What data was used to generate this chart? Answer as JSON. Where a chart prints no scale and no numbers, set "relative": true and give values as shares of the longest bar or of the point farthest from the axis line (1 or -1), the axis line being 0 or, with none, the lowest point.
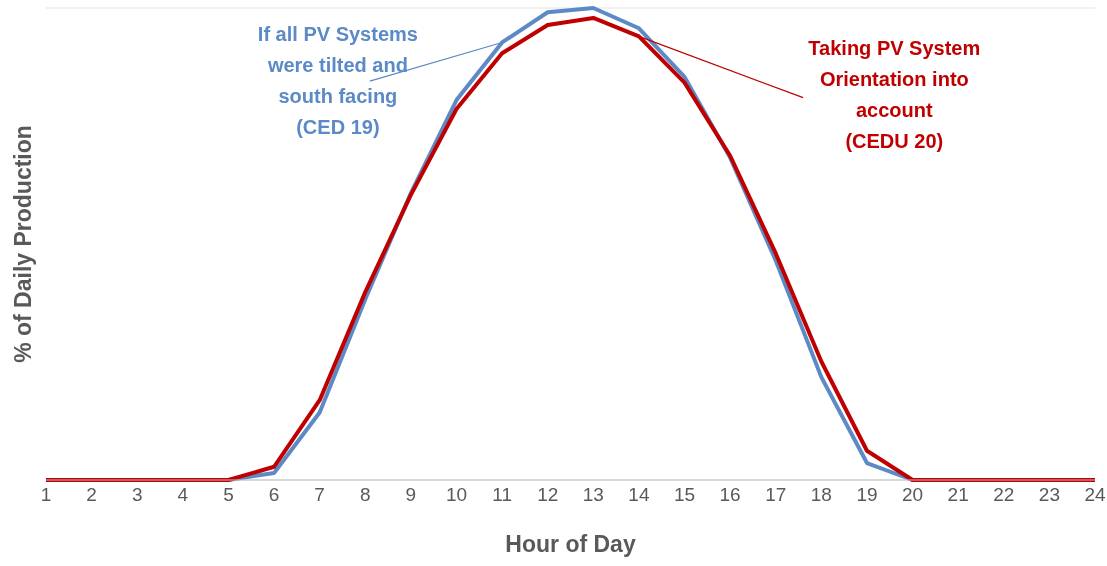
{
  "chart_data": {
    "type": "line",
    "relative": true,
    "xlabel": "Hour of Day",
    "ylabel": "% of Daily Production",
    "x": [
      1,
      2,
      3,
      4,
      5,
      6,
      7,
      8,
      9,
      10,
      11,
      12,
      13,
      14,
      15,
      16,
      17,
      18,
      19,
      20,
      21,
      22,
      23,
      24
    ],
    "xlim": [
      1,
      24
    ],
    "xticks": [
      1,
      2,
      3,
      4,
      5,
      6,
      7,
      8,
      9,
      10,
      11,
      12,
      13,
      14,
      15,
      16,
      17,
      18,
      19,
      20,
      21,
      22,
      23,
      24
    ],
    "series": [
      {
        "color": "#5b8ac6",
        "values": [
          null,
          null,
          null,
          null,
          0,
          0.015,
          0.143,
          0.383,
          0.608,
          0.805,
          0.927,
          0.991,
          1,
          0.957,
          0.854,
          0.683,
          0.465,
          0.218,
          0.036,
          0,
          null,
          null,
          null,
          null
        ]
      },
      {
        "color": "#c00000",
        "values": [
          0,
          0,
          0,
          0,
          0,
          0.028,
          0.169,
          0.398,
          0.604,
          0.786,
          0.904,
          0.964,
          0.979,
          0.94,
          0.842,
          0.687,
          0.48,
          0.251,
          0.062,
          0,
          0,
          0,
          0,
          0
        ]
      }
    ],
    "annotations": [
      {
        "text": "If all PV Systems\nwere tilted and\nsouth facing\n(CED 19)",
        "x": 11,
        "y": 0.927
      },
      {
        "text": "Taking PV System\nOrientation into\naccount\n(CEDU 20)",
        "x": 14,
        "y": 0.94
      }
    ],
    "grid": "y",
    "marker": "none",
    "line_style": "solid",
    "legend": false
  }
}
